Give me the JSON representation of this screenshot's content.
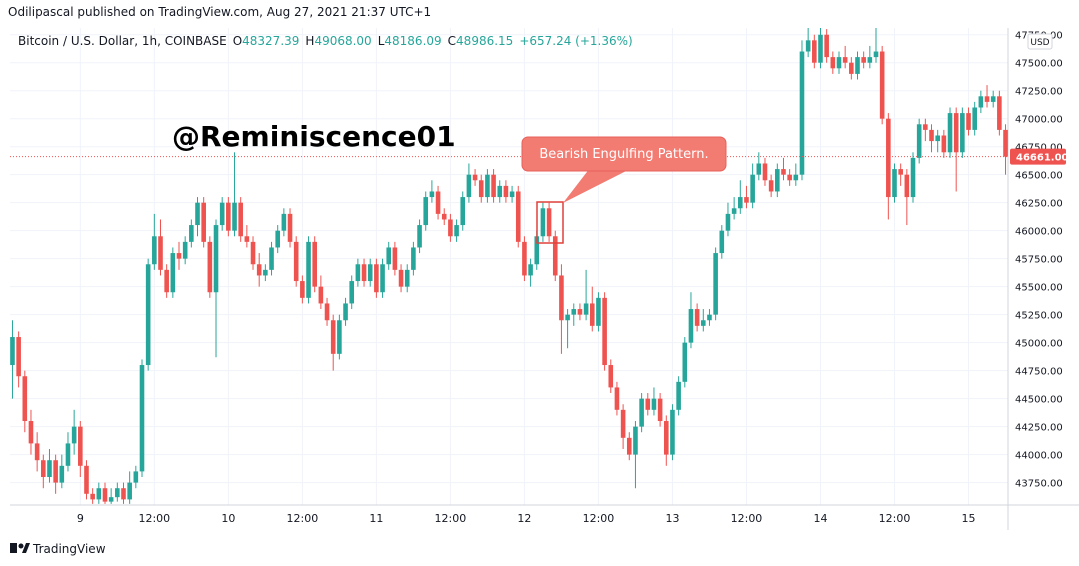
{
  "header": {
    "published": "Odilipascal published on TradingView.com, Aug 27, 2021 21:37 UTC+1",
    "symbol": "Bitcoin / U.S. Dollar, 1h, COINBASE",
    "ohlc": [
      {
        "key": "O",
        "value": "48327.39"
      },
      {
        "key": "H",
        "value": "49068.00"
      },
      {
        "key": "L",
        "value": "48186.09"
      },
      {
        "key": "C",
        "value": "48986.15"
      }
    ],
    "change": "+657.24 (+1.36%)"
  },
  "footer": "TradingView",
  "chart_data": {
    "type": "candlestick",
    "watermark": "@Reminiscence01",
    "annotation": "Bearish Engulfing Pattern.",
    "currency": "USD",
    "up_color": "#26a69a",
    "down_color": "#ef5350",
    "grid": true,
    "last_price": {
      "value": 46661,
      "label": "46661.00"
    },
    "ylim": [
      43550,
      47810
    ],
    "yticks": [
      {
        "value": 43750,
        "label": "43750.00"
      },
      {
        "value": 44000,
        "label": "44000.00"
      },
      {
        "value": 44250,
        "label": "44250.00"
      },
      {
        "value": 44500,
        "label": "44500.00"
      },
      {
        "value": 44750,
        "label": "44750.00"
      },
      {
        "value": 45000,
        "label": "45000.00"
      },
      {
        "value": 45250,
        "label": "45250.00"
      },
      {
        "value": 45500,
        "label": "45500.00"
      },
      {
        "value": 45750,
        "label": "45750.00"
      },
      {
        "value": 46000,
        "label": "46000.00"
      },
      {
        "value": 46250,
        "label": "46250.00"
      },
      {
        "value": 46500,
        "label": "46500.00"
      },
      {
        "value": 46750,
        "label": "46750.00"
      },
      {
        "value": 47000,
        "label": "47000.00"
      },
      {
        "value": 47250,
        "label": "47250.00"
      },
      {
        "value": 47500,
        "label": "47500.00"
      },
      {
        "value": 47750,
        "label": "47750.00"
      }
    ],
    "xlim": [
      -0.4,
      161.4
    ],
    "xticks": [
      {
        "value": 11,
        "label": "9"
      },
      {
        "value": 23,
        "label": "12:00"
      },
      {
        "value": 35,
        "label": "10"
      },
      {
        "value": 47,
        "label": "12:00"
      },
      {
        "value": 59,
        "label": "11"
      },
      {
        "value": 71,
        "label": "12:00"
      },
      {
        "value": 83,
        "label": "12"
      },
      {
        "value": 95,
        "label": "12:00"
      },
      {
        "value": 107,
        "label": "13"
      },
      {
        "value": 119,
        "label": "12:00"
      },
      {
        "value": 131,
        "label": "14"
      },
      {
        "value": 143,
        "label": "12:00"
      },
      {
        "value": 155,
        "label": "15"
      }
    ],
    "candles": [
      [
        44800,
        45200,
        44500,
        45050
      ],
      [
        45050,
        45100,
        44600,
        44700
      ],
      [
        44700,
        44750,
        44200,
        44300
      ],
      [
        44300,
        44400,
        44000,
        44100
      ],
      [
        44100,
        44200,
        43850,
        43950
      ],
      [
        43950,
        44000,
        43700,
        43800
      ],
      [
        43800,
        44050,
        43750,
        43950
      ],
      [
        43950,
        44000,
        43650,
        43750
      ],
      [
        43750,
        44000,
        43700,
        43900
      ],
      [
        43900,
        44200,
        43850,
        44100
      ],
      [
        44100,
        44400,
        44000,
        44250
      ],
      [
        44250,
        44300,
        43800,
        43900
      ],
      [
        43900,
        43950,
        43600,
        43650
      ],
      [
        43650,
        43700,
        43560,
        43600
      ],
      [
        43600,
        43750,
        43560,
        43700
      ],
      [
        43700,
        43750,
        43560,
        43580
      ],
      [
        43580,
        43700,
        43560,
        43620
      ],
      [
        43620,
        43750,
        43580,
        43700
      ],
      [
        43700,
        43750,
        43560,
        43600
      ],
      [
        43600,
        43850,
        43560,
        43750
      ],
      [
        43750,
        43900,
        43700,
        43850
      ],
      [
        43850,
        44850,
        43800,
        44800
      ],
      [
        44800,
        45750,
        44750,
        45700
      ],
      [
        45700,
        46150,
        45650,
        45950
      ],
      [
        45950,
        46100,
        45600,
        45650
      ],
      [
        45650,
        45700,
        45400,
        45450
      ],
      [
        45450,
        45850,
        45400,
        45800
      ],
      [
        45800,
        45900,
        45650,
        45750
      ],
      [
        45750,
        45950,
        45700,
        45900
      ],
      [
        45900,
        46100,
        45850,
        46050
      ],
      [
        46050,
        46300,
        45950,
        46250
      ],
      [
        46250,
        46300,
        45850,
        45900
      ],
      [
        45900,
        45950,
        45400,
        45450
      ],
      [
        45450,
        46100,
        44870,
        46050
      ],
      [
        46050,
        46300,
        46000,
        46250
      ],
      [
        46250,
        46300,
        45950,
        46000
      ],
      [
        46000,
        46700,
        45950,
        46250
      ],
      [
        46250,
        46300,
        45900,
        45950
      ],
      [
        45950,
        46050,
        45850,
        45900
      ],
      [
        45900,
        45950,
        45650,
        45700
      ],
      [
        45700,
        45800,
        45500,
        45600
      ],
      [
        45600,
        45700,
        45550,
        45650
      ],
      [
        45650,
        45900,
        45600,
        45850
      ],
      [
        45850,
        46050,
        45800,
        46000
      ],
      [
        46000,
        46200,
        45950,
        46150
      ],
      [
        46150,
        46200,
        45850,
        45900
      ],
      [
        45900,
        45950,
        45500,
        45550
      ],
      [
        45550,
        45600,
        45350,
        45400
      ],
      [
        45400,
        45950,
        45350,
        45900
      ],
      [
        45900,
        45950,
        45450,
        45500
      ],
      [
        45500,
        45600,
        45300,
        45350
      ],
      [
        45350,
        45400,
        45150,
        45200
      ],
      [
        45200,
        45250,
        44750,
        44900
      ],
      [
        44900,
        45250,
        44850,
        45200
      ],
      [
        45200,
        45400,
        45150,
        45350
      ],
      [
        45350,
        45600,
        45300,
        45550
      ],
      [
        45550,
        45750,
        45500,
        45700
      ],
      [
        45700,
        45750,
        45500,
        45550
      ],
      [
        45550,
        45750,
        45500,
        45700
      ],
      [
        45700,
        45750,
        45400,
        45450
      ],
      [
        45450,
        45750,
        45400,
        45700
      ],
      [
        45700,
        45900,
        45650,
        45850
      ],
      [
        45850,
        45900,
        45600,
        45650
      ],
      [
        45650,
        45700,
        45450,
        45500
      ],
      [
        45500,
        45700,
        45450,
        45650
      ],
      [
        45650,
        45900,
        45600,
        45850
      ],
      [
        45850,
        46100,
        45800,
        46050
      ],
      [
        46050,
        46350,
        46000,
        46300
      ],
      [
        46300,
        46450,
        46250,
        46350
      ],
      [
        46350,
        46400,
        46100,
        46150
      ],
      [
        46150,
        46200,
        46050,
        46100
      ],
      [
        46100,
        46150,
        45900,
        45950
      ],
      [
        45950,
        46100,
        45900,
        46050
      ],
      [
        46050,
        46350,
        46000,
        46300
      ],
      [
        46300,
        46600,
        46250,
        46500
      ],
      [
        46500,
        46550,
        46400,
        46450
      ],
      [
        46450,
        46500,
        46250,
        46300
      ],
      [
        46300,
        46550,
        46250,
        46500
      ],
      [
        46500,
        46550,
        46250,
        46300
      ],
      [
        46300,
        46450,
        46250,
        46400
      ],
      [
        46400,
        46450,
        46250,
        46300
      ],
      [
        46300,
        46400,
        46250,
        46350
      ],
      [
        46350,
        46400,
        45850,
        45900
      ],
      [
        45900,
        45950,
        45550,
        45600
      ],
      [
        45600,
        45750,
        45500,
        45700
      ],
      [
        45700,
        46000,
        45650,
        45950
      ],
      [
        45950,
        46250,
        45900,
        46200
      ],
      [
        46200,
        46250,
        45900,
        45950
      ],
      [
        45950,
        46000,
        45550,
        45600
      ],
      [
        45600,
        45700,
        44900,
        45200
      ],
      [
        45200,
        45300,
        44950,
        45250
      ],
      [
        45250,
        45350,
        45150,
        45300
      ],
      [
        45300,
        45350,
        45200,
        45250
      ],
      [
        45250,
        45650,
        45200,
        45350
      ],
      [
        45350,
        45500,
        45100,
        45150
      ],
      [
        45150,
        45450,
        45100,
        45400
      ],
      [
        45400,
        45450,
        44750,
        44800
      ],
      [
        44800,
        44850,
        44550,
        44600
      ],
      [
        44600,
        44650,
        44350,
        44400
      ],
      [
        44400,
        44450,
        44050,
        44150
      ],
      [
        44150,
        44200,
        43950,
        44000
      ],
      [
        44000,
        44300,
        43700,
        44250
      ],
      [
        44250,
        44550,
        44200,
        44500
      ],
      [
        44500,
        44550,
        44350,
        44400
      ],
      [
        44400,
        44600,
        44350,
        44500
      ],
      [
        44500,
        44550,
        44250,
        44300
      ],
      [
        44300,
        44350,
        43900,
        44000
      ],
      [
        44000,
        44450,
        43950,
        44400
      ],
      [
        44400,
        44700,
        44350,
        44650
      ],
      [
        44650,
        45050,
        44600,
        45000
      ],
      [
        45000,
        45450,
        44950,
        45300
      ],
      [
        45300,
        45350,
        45100,
        45150
      ],
      [
        45150,
        45300,
        45100,
        45200
      ],
      [
        45200,
        45300,
        45150,
        45250
      ],
      [
        45250,
        45850,
        45200,
        45800
      ],
      [
        45800,
        46050,
        45750,
        46000
      ],
      [
        46000,
        46250,
        45950,
        46150
      ],
      [
        46150,
        46300,
        46100,
        46200
      ],
      [
        46200,
        46450,
        46150,
        46300
      ],
      [
        46300,
        46400,
        46200,
        46250
      ],
      [
        46250,
        46600,
        46200,
        46500
      ],
      [
        46500,
        46700,
        46450,
        46600
      ],
      [
        46600,
        46650,
        46400,
        46450
      ],
      [
        46450,
        46500,
        46300,
        46350
      ],
      [
        46350,
        46600,
        46300,
        46550
      ],
      [
        46550,
        46650,
        46450,
        46500
      ],
      [
        46500,
        46550,
        46400,
        46450
      ],
      [
        46450,
        46600,
        46400,
        46500
      ],
      [
        46500,
        47700,
        46450,
        47600
      ],
      [
        47600,
        47810,
        47550,
        47700
      ],
      [
        47700,
        47750,
        47450,
        47500
      ],
      [
        47500,
        47810,
        47450,
        47750
      ],
      [
        47750,
        47800,
        47500,
        47550
      ],
      [
        47550,
        47600,
        47400,
        47450
      ],
      [
        47450,
        47600,
        47400,
        47550
      ],
      [
        47550,
        47650,
        47450,
        47500
      ],
      [
        47500,
        47550,
        47350,
        47400
      ],
      [
        47400,
        47600,
        47350,
        47550
      ],
      [
        47550,
        47600,
        47450,
        47500
      ],
      [
        47500,
        47650,
        47450,
        47550
      ],
      [
        47550,
        47810,
        47500,
        47600
      ],
      [
        47600,
        47650,
        46950,
        47000
      ],
      [
        47000,
        47050,
        46100,
        46300
      ],
      [
        46300,
        46600,
        46250,
        46550
      ],
      [
        46550,
        46600,
        46400,
        46500
      ],
      [
        46500,
        46550,
        46050,
        46300
      ],
      [
        46300,
        46700,
        46250,
        46650
      ],
      [
        46650,
        47000,
        46600,
        46950
      ],
      [
        46950,
        47000,
        46800,
        46900
      ],
      [
        46900,
        46950,
        46700,
        46800
      ],
      [
        46800,
        46900,
        46700,
        46850
      ],
      [
        46850,
        46900,
        46650,
        46700
      ],
      [
        46700,
        47100,
        46650,
        47050
      ],
      [
        47050,
        47100,
        46350,
        46700
      ],
      [
        46700,
        47100,
        46650,
        47050
      ],
      [
        47050,
        47100,
        46850,
        46900
      ],
      [
        46900,
        47150,
        46850,
        47100
      ],
      [
        47100,
        47250,
        47050,
        47200
      ],
      [
        47200,
        47300,
        47100,
        47150
      ],
      [
        47150,
        47250,
        47100,
        47200
      ],
      [
        47200,
        47250,
        46850,
        46900
      ],
      [
        46900,
        46950,
        46500,
        46661
      ]
    ]
  }
}
